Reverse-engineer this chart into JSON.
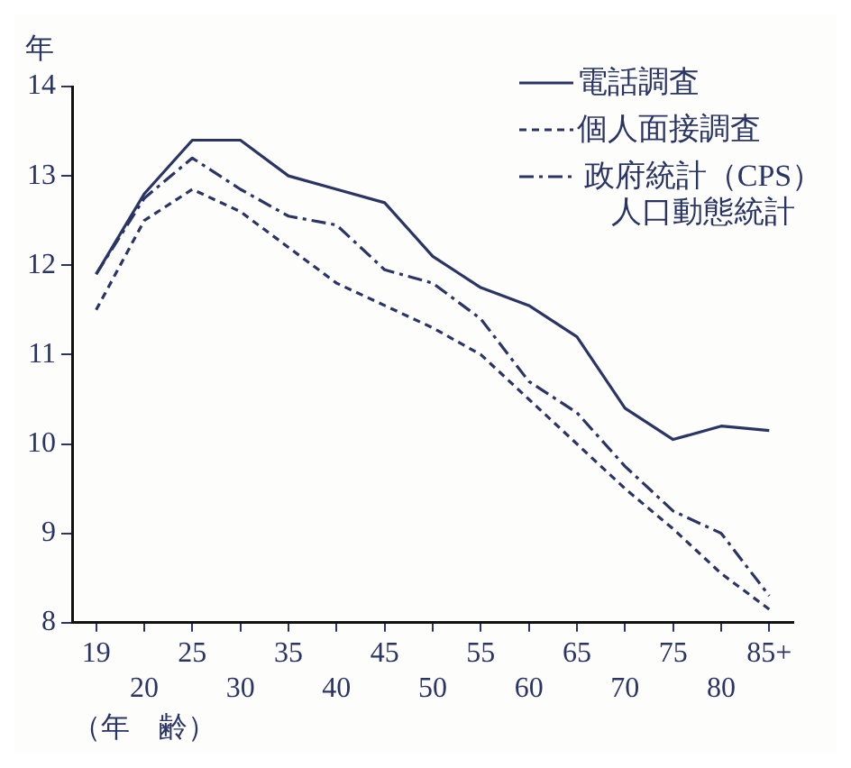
{
  "chart_data": {
    "type": "line",
    "ylabel": "年",
    "xlabel": "（年　齢）",
    "categories": [
      "19",
      "20",
      "25",
      "30",
      "35",
      "40",
      "45",
      "50",
      "55",
      "60",
      "65",
      "70",
      "75",
      "80",
      "85+"
    ],
    "series": [
      {
        "name": "電話調査",
        "color": "#2a3566",
        "line_style": "solid",
        "values": [
          11.9,
          12.8,
          13.4,
          13.4,
          13.0,
          12.85,
          12.7,
          12.1,
          11.75,
          11.55,
          11.2,
          10.4,
          10.05,
          10.2,
          10.15
        ]
      },
      {
        "name": "個人面接調査",
        "color": "#2a3566",
        "line_style": "dashed",
        "values": [
          11.5,
          12.5,
          12.85,
          12.6,
          12.2,
          11.8,
          11.55,
          11.3,
          11.0,
          10.5,
          10.0,
          9.5,
          9.05,
          8.55,
          8.15
        ]
      },
      {
        "name": "政府統計（CPS）人口動態統計",
        "color": "#2a3566",
        "line_style": "dashdot",
        "values": [
          11.9,
          12.75,
          13.2,
          12.85,
          12.55,
          12.45,
          11.95,
          11.8,
          11.4,
          10.7,
          10.35,
          9.75,
          9.25,
          9.0,
          8.3
        ]
      }
    ],
    "ylim": [
      8,
      14
    ],
    "yticks": [
      8,
      9,
      10,
      11,
      12,
      13,
      14
    ],
    "grid": false,
    "legend": "top right",
    "marker": "none"
  }
}
